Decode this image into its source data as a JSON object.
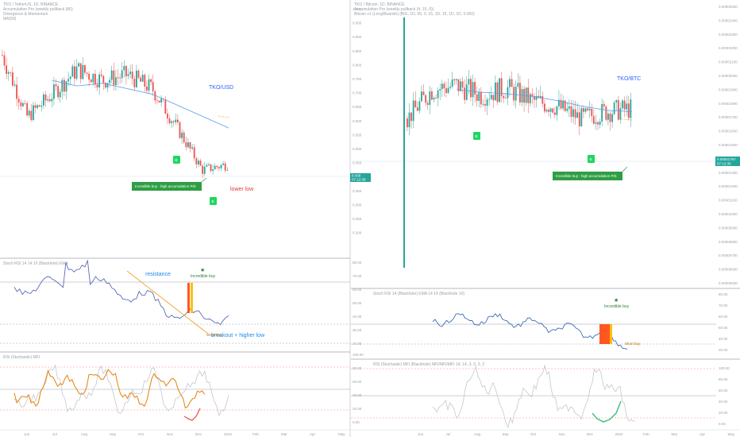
{
  "left_panel": {
    "pair_label": "TKO/USD",
    "header_lines": [
      "TKO / TetherUS, 1D, BINANCE",
      "Accumulation Pro (weekly pullback (M))",
      "Divergence & Momentum",
      "MA(50)"
    ],
    "price_axis": [
      "1.000",
      "0.950",
      "0.900",
      "0.850",
      "0.800",
      "0.750",
      "0.700",
      "0.650",
      "0.600",
      "0.550",
      "0.500",
      "0.450",
      "0.400",
      "0.350",
      "0.300",
      "0.250",
      "0.200"
    ],
    "current_price": "0.439",
    "current_time": "07:12:36",
    "time_axis": [
      "Jun",
      "Jul",
      "Aug",
      "Sep",
      "Oct",
      "Nov",
      "Dec",
      "2022",
      "Feb",
      "Mar",
      "Apr",
      "May"
    ],
    "annotations": {
      "lower_low": "lower low",
      "buy_note": "Incredible buy - high accumulation Prb",
      "resistance": "resistance",
      "breakout": "breakout + higher low",
      "incredible_buy": "Incredible buy",
      "signal_tag": "Short buy",
      "rsi_header": "Stoch RSI 14 14 10 (Blackhole) EMA",
      "stoch_header": "RSI (Stochastic) MFI"
    },
    "rsi_axis": [
      "80.00",
      "70.00",
      "60.00",
      "50.00",
      "40.00",
      "30.00",
      "20.00"
    ],
    "stoch_axis": [
      "100.00",
      "80.00",
      "60.00",
      "40.00",
      "20.00",
      "0.00"
    ]
  },
  "right_panel": {
    "pair_label": "TKO/BTC",
    "header_lines": [
      "TKO / Bitcoin, 1D, BINANCE",
      "Accumulation Pro (weekly pullback (4, 15, 6))",
      "Bitcoin v1 (Long/Bearish) (BIG, 1D, 50, 0, 15, 1D, 15, 1D, 1D, 0.000)"
    ],
    "price_axis": [
      "0.00002500",
      "0.00002400",
      "0.00002300",
      "0.00002200",
      "0.00002100",
      "0.00002000",
      "0.00001900",
      "0.00001800",
      "0.00001700",
      "0.00001600",
      "0.00001500",
      "0.00001400",
      "0.00001300",
      "0.00001200",
      "0.00001100",
      "0.00001000",
      "0.00000900",
      "0.00000800",
      "0.00000700",
      "0.00000600",
      "0.00000500"
    ],
    "current_price": "0.00001767",
    "current_time": "07:12:35",
    "time_axis": [
      "Jun",
      "Jul",
      "Aug",
      "Sep",
      "Oct",
      "Nov",
      "Dec",
      "2022",
      "Feb",
      "Mar",
      "Apr",
      "May"
    ],
    "annotations": {
      "buy_note": "Incredible buy - high accumulation Prb",
      "incredible_buy": "Incredible buy",
      "signal_tag": "Short buy",
      "rsi_header": "Stoch RSI 14 (Blackhole) EMA 14 14 (Blackhole 10)",
      "stoch_header": "RSI (Stochastic) MFI (Blackhole) MFI/MFI/MFI 14, 14, 3, 3, 3, 3"
    },
    "rsi_axis": [
      "80.00",
      "70.00",
      "60.00",
      "50.00",
      "40.00",
      "30.00"
    ],
    "stoch_axis": [
      "100.00",
      "80.00",
      "60.00",
      "40.00",
      "20.00",
      "0.00"
    ]
  },
  "chart_data": [
    {
      "type": "line",
      "title": "TKO/USD",
      "x": [
        "Jun",
        "Jul",
        "Aug",
        "Sep",
        "Oct",
        "Nov",
        "Dec",
        "2022",
        "Feb",
        "Mar"
      ],
      "series": [
        {
          "values": [
            0.84,
            0.62,
            0.7,
            0.79,
            0.75,
            0.77,
            0.72,
            0.58,
            0.43,
            0.45
          ]
        },
        {
          "values": [
            null,
            null,
            0.75,
            0.73,
            0.74,
            0.72,
            0.7,
            0.66,
            0.62,
            0.58
          ]
        }
      ],
      "ylim": [
        0.2,
        1.0
      ]
    },
    {
      "type": "line",
      "title": "TKO/BTC",
      "x": [
        "Jun",
        "Jul",
        "Aug",
        "Sep",
        "Oct",
        "Nov",
        "Dec",
        "2022",
        "Feb",
        "Mar"
      ],
      "series": [
        {
          "values": [
            1.7e-05,
            1.91e-05,
            1.94e-05,
            1.87e-05,
            1.92e-05,
            1.83e-05,
            1.79e-05,
            1.7e-05,
            1.75e-05,
            1.77e-05
          ]
        },
        {
          "values": [
            null,
            null,
            1.91e-05,
            1.89e-05,
            1.88e-05,
            1.86e-05,
            1.83e-05,
            1.79e-05,
            1.76e-05,
            1.75e-05
          ]
        }
      ],
      "ylim": [
        5e-06,
        2.5e-05
      ]
    }
  ]
}
